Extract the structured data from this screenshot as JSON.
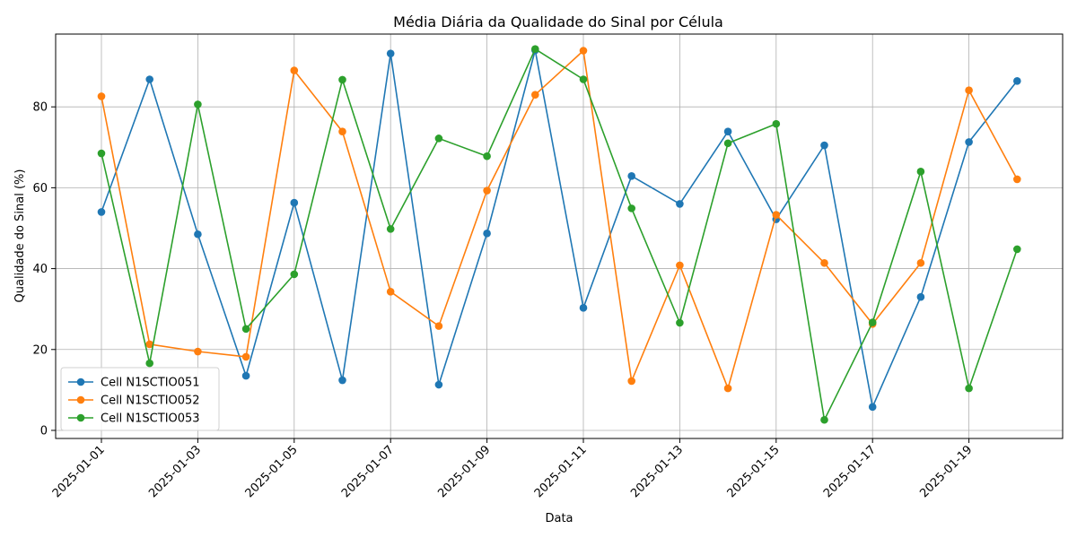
{
  "chart_data": {
    "type": "line",
    "title": "Média Diária da Qualidade do Sinal por Célula",
    "xlabel": "Data",
    "ylabel": "Qualidade do Sinal (%)",
    "x": [
      "2025-01-01",
      "2025-01-02",
      "2025-01-03",
      "2025-01-04",
      "2025-01-05",
      "2025-01-06",
      "2025-01-07",
      "2025-01-08",
      "2025-01-09",
      "2025-01-10",
      "2025-01-11",
      "2025-01-12",
      "2025-01-13",
      "2025-01-14",
      "2025-01-15",
      "2025-01-16",
      "2025-01-17",
      "2025-01-18",
      "2025-01-19",
      "2025-01-20"
    ],
    "x_tick_labels": [
      "2025-01-01",
      "2025-01-03",
      "2025-01-05",
      "2025-01-07",
      "2025-01-09",
      "2025-01-11",
      "2025-01-13",
      "2025-01-15",
      "2025-01-17",
      "2025-01-19"
    ],
    "y_ticks": [
      0,
      20,
      40,
      60,
      80
    ],
    "ylim": [
      -2,
      98
    ],
    "grid": true,
    "legend_position": "lower-left",
    "series": [
      {
        "name": "Cell N1SCTIO051",
        "color": "#1f77b4",
        "values": [
          54.0,
          86.8,
          48.5,
          13.5,
          56.3,
          12.4,
          93.2,
          11.3,
          48.7,
          94.0,
          30.3,
          62.9,
          56.0,
          73.9,
          52.2,
          70.5,
          5.8,
          33.0,
          71.3,
          86.4
        ]
      },
      {
        "name": "Cell N1SCTIO052",
        "color": "#ff7f0e",
        "values": [
          82.6,
          21.3,
          19.5,
          18.2,
          89.0,
          73.9,
          34.3,
          25.8,
          59.3,
          83.0,
          93.9,
          12.2,
          40.8,
          10.4,
          53.3,
          41.4,
          26.3,
          41.4,
          84.1,
          62.1
        ]
      },
      {
        "name": "Cell N1SCTIO053",
        "color": "#2ca02c",
        "values": [
          68.5,
          16.6,
          80.6,
          25.1,
          38.6,
          86.7,
          49.8,
          72.2,
          67.8,
          94.3,
          86.8,
          54.9,
          26.6,
          71.0,
          75.8,
          2.6,
          26.7,
          64.0,
          10.4,
          44.8
        ]
      }
    ]
  }
}
